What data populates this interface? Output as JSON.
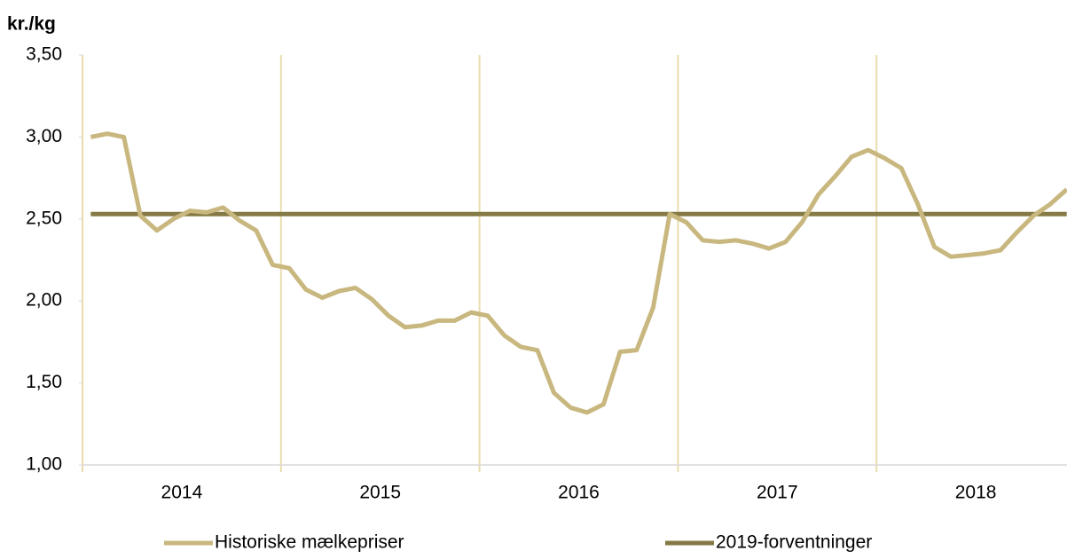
{
  "chart_data": {
    "type": "line",
    "y_label": "kr./kg",
    "year_labels": [
      "2014",
      "2015",
      "2016",
      "2017",
      "2018"
    ],
    "ylim": [
      1,
      3.5
    ],
    "yticks": [
      {
        "value": 1,
        "label": "1,00"
      },
      {
        "value": 1.5,
        "label": "1,50"
      },
      {
        "value": 2,
        "label": "2,00"
      },
      {
        "value": 2.5,
        "label": "2,50"
      },
      {
        "value": 3,
        "label": "3,00"
      },
      {
        "value": 3.5,
        "label": "3,50"
      }
    ],
    "series": [
      {
        "name": "Historiske mælkepriser",
        "color": "#c8b77e",
        "values": [
          3.0,
          3.02,
          3.0,
          2.52,
          2.43,
          2.5,
          2.55,
          2.54,
          2.57,
          2.49,
          2.43,
          2.22,
          2.2,
          2.07,
          2.02,
          2.06,
          2.08,
          2.01,
          1.91,
          1.84,
          1.85,
          1.88,
          1.88,
          1.93,
          1.91,
          1.79,
          1.72,
          1.7,
          1.44,
          1.35,
          1.32,
          1.37,
          1.69,
          1.7,
          1.96,
          2.53,
          2.48,
          2.37,
          2.36,
          2.37,
          2.35,
          2.32,
          2.36,
          2.48,
          2.65,
          2.76,
          2.88,
          2.92,
          2.87,
          2.81,
          2.59,
          2.33,
          2.27,
          2.28,
          2.29,
          2.31,
          2.42,
          2.52,
          2.59,
          2.68
        ]
      },
      {
        "name": "2019-forventninger",
        "color": "#857a45",
        "values": [
          2.53,
          2.53,
          2.53,
          2.53,
          2.53,
          2.53,
          2.53,
          2.53,
          2.53,
          2.53,
          2.53,
          2.53,
          2.53,
          2.53,
          2.53,
          2.53,
          2.53,
          2.53,
          2.53,
          2.53,
          2.53,
          2.53,
          2.53,
          2.53,
          2.53,
          2.53,
          2.53,
          2.53,
          2.53,
          2.53,
          2.53,
          2.53,
          2.53,
          2.53,
          2.53,
          2.53,
          2.53,
          2.53,
          2.53,
          2.53,
          2.53,
          2.53,
          2.53,
          2.53,
          2.53,
          2.53,
          2.53,
          2.53,
          2.53,
          2.53,
          2.53,
          2.53,
          2.53,
          2.53,
          2.53,
          2.53,
          2.53,
          2.53,
          2.53,
          2.53
        ]
      }
    ]
  }
}
